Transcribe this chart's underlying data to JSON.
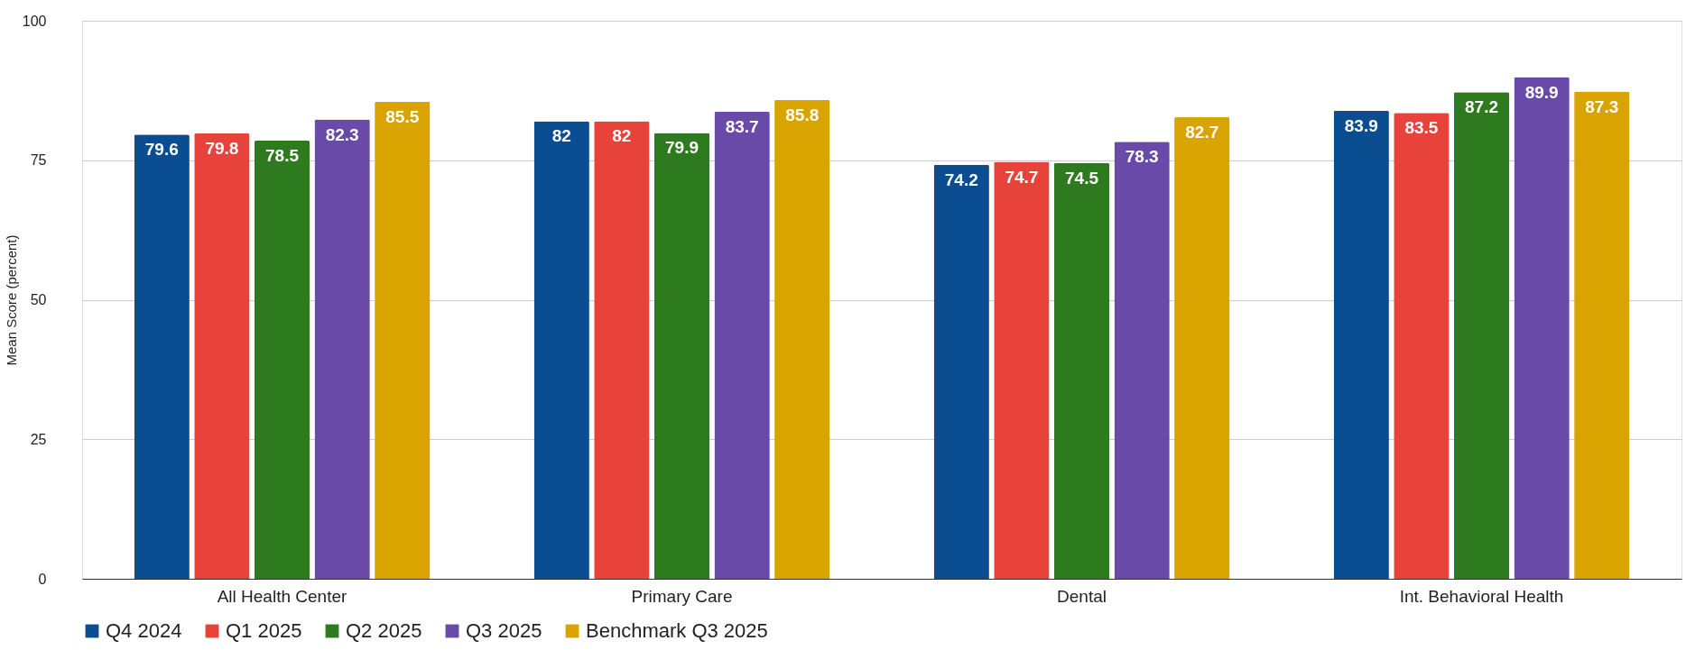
{
  "chart_data": {
    "type": "bar",
    "ylabel": "Mean Score (percent)",
    "categories": [
      "All Health Center",
      "Primary Care",
      "Dental",
      "Int. Behavioral Health"
    ],
    "series": [
      {
        "name": "Q4 2024",
        "color": "#0b4d91",
        "values": [
          79.6,
          82,
          74.2,
          83.9
        ]
      },
      {
        "name": "Q1 2025",
        "color": "#e8433a",
        "values": [
          79.8,
          82,
          74.7,
          83.5
        ]
      },
      {
        "name": "Q2 2025",
        "color": "#2e7a1f",
        "values": [
          78.5,
          79.9,
          74.5,
          87.2
        ]
      },
      {
        "name": "Q3 2025",
        "color": "#6a4aa8",
        "values": [
          82.3,
          83.7,
          78.3,
          89.9
        ]
      },
      {
        "name": "Benchmark Q3 2025",
        "color": "#d9a300",
        "values": [
          85.5,
          85.8,
          82.7,
          87.3
        ]
      }
    ],
    "ylim": [
      0,
      100
    ],
    "yticks": [
      0,
      25,
      50,
      75,
      100
    ],
    "grid": "y",
    "legend": "bottom",
    "data_labels": true
  }
}
